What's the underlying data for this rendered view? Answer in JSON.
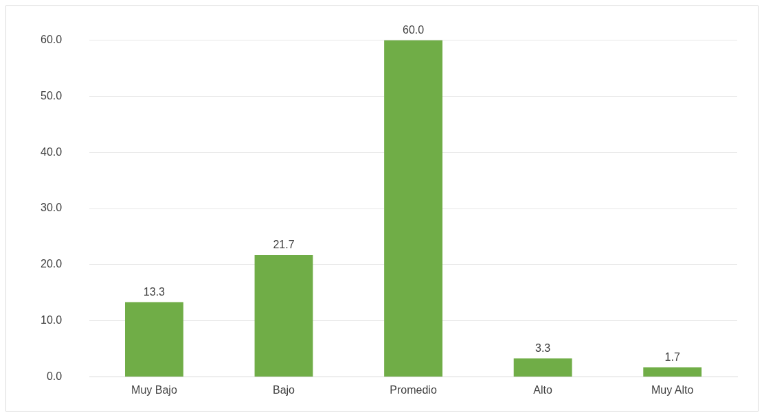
{
  "chart_data": {
    "type": "bar",
    "categories": [
      "Muy Bajo",
      "Bajo",
      "Promedio",
      "Alto",
      "Muy Alto"
    ],
    "values": [
      13.3,
      21.7,
      60.0,
      3.3,
      1.7
    ],
    "value_labels": [
      "13.3",
      "21.7",
      "60.0",
      "3.3",
      "1.7"
    ],
    "color": "#70ad47",
    "ylim": [
      0,
      60
    ],
    "yticks": [
      {
        "value": 0,
        "label": "0.0"
      },
      {
        "value": 10,
        "label": "10.0"
      },
      {
        "value": 20,
        "label": "20.0"
      },
      {
        "value": 30,
        "label": "30.0"
      },
      {
        "value": 40,
        "label": "40.0"
      },
      {
        "value": 50,
        "label": "50.0"
      },
      {
        "value": 60,
        "label": "60.0"
      }
    ],
    "grid": "y",
    "legend": false
  }
}
